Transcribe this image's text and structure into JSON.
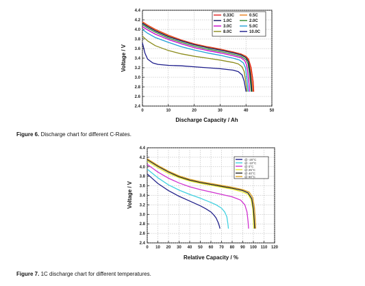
{
  "chart_data": [
    {
      "type": "line",
      "xlabel": "Discharge Capacity / Ah",
      "ylabel": "Voltage / V",
      "xlim": [
        0,
        50
      ],
      "ylim": [
        2.4,
        4.4
      ],
      "xticks": [
        "0",
        "10",
        "20",
        "30",
        "40",
        "50"
      ],
      "yticks": [
        "2.4",
        "2.6",
        "2.8",
        "3.0",
        "3.2",
        "3.4",
        "3.6",
        "3.8",
        "4.0",
        "4.2",
        "4.4"
      ],
      "legend_position": "top-right",
      "legend_columns": 2,
      "series": [
        {
          "name": "0.33C",
          "color": "#e01b1b",
          "x": [
            0,
            2,
            5,
            10,
            15,
            20,
            25,
            30,
            35,
            38,
            40,
            41,
            42,
            42.8,
            43
          ],
          "y": [
            4.16,
            4.09,
            4.0,
            3.88,
            3.78,
            3.7,
            3.64,
            3.59,
            3.53,
            3.49,
            3.44,
            3.38,
            3.2,
            2.9,
            2.7
          ]
        },
        {
          "name": "0.5C",
          "color": "#e87d1a",
          "x": [
            0,
            2,
            5,
            10,
            15,
            20,
            25,
            30,
            35,
            38,
            40,
            41,
            41.8,
            42.5,
            42.7
          ],
          "y": [
            4.15,
            4.08,
            3.99,
            3.87,
            3.77,
            3.69,
            3.63,
            3.58,
            3.52,
            3.48,
            3.43,
            3.35,
            3.15,
            2.85,
            2.7
          ]
        },
        {
          "name": "1.0C",
          "color": "#0a0a5c",
          "x": [
            0,
            2,
            5,
            10,
            15,
            20,
            25,
            30,
            35,
            38,
            40,
            41,
            41.6,
            42.1,
            42.3
          ],
          "y": [
            4.13,
            4.06,
            3.97,
            3.85,
            3.76,
            3.68,
            3.62,
            3.57,
            3.51,
            3.47,
            3.41,
            3.32,
            3.1,
            2.85,
            2.7
          ]
        },
        {
          "name": "2.0C",
          "color": "#2e8b2e",
          "x": [
            0,
            2,
            5,
            10,
            15,
            20,
            25,
            30,
            35,
            38,
            40,
            40.8,
            41.4,
            41.8,
            42
          ],
          "y": [
            4.1,
            4.03,
            3.94,
            3.82,
            3.73,
            3.65,
            3.59,
            3.54,
            3.48,
            3.44,
            3.37,
            3.28,
            3.05,
            2.85,
            2.7
          ]
        },
        {
          "name": "3.0C",
          "color": "#c800c8",
          "x": [
            0,
            2,
            5,
            10,
            15,
            20,
            25,
            30,
            35,
            38,
            39.5,
            40.3,
            40.8,
            41.2,
            41.4
          ],
          "y": [
            4.06,
            3.99,
            3.9,
            3.79,
            3.7,
            3.62,
            3.56,
            3.51,
            3.45,
            3.41,
            3.35,
            3.25,
            3.05,
            2.85,
            2.7
          ]
        },
        {
          "name": "5.0C",
          "color": "#1f9fd6",
          "x": [
            0,
            2,
            5,
            10,
            15,
            20,
            25,
            30,
            35,
            37.5,
            39,
            39.8,
            40.3,
            40.7,
            40.9
          ],
          "y": [
            4.0,
            3.92,
            3.83,
            3.73,
            3.64,
            3.57,
            3.51,
            3.46,
            3.4,
            3.36,
            3.3,
            3.2,
            3.0,
            2.8,
            2.7
          ]
        },
        {
          "name": "8.0C",
          "color": "#8b8b1a",
          "x": [
            0,
            2,
            5,
            10,
            15,
            20,
            25,
            30,
            35,
            37,
            38.5,
            39.3,
            39.8,
            40.2,
            40.4
          ],
          "y": [
            3.86,
            3.76,
            3.66,
            3.56,
            3.49,
            3.44,
            3.4,
            3.36,
            3.31,
            3.28,
            3.22,
            3.12,
            2.95,
            2.8,
            2.7
          ]
        },
        {
          "name": "10.0C",
          "color": "#1a1a8a",
          "x": [
            0,
            1,
            2,
            4,
            6,
            10,
            15,
            20,
            25,
            30,
            35,
            37,
            38.5,
            39.3,
            39.7,
            40
          ],
          "y": [
            3.72,
            3.5,
            3.38,
            3.3,
            3.27,
            3.25,
            3.24,
            3.22,
            3.2,
            3.18,
            3.15,
            3.12,
            3.05,
            2.92,
            2.8,
            2.7
          ]
        }
      ]
    },
    {
      "type": "line",
      "xlabel": "Relative Capacity / %",
      "ylabel": "Voltage / V",
      "xlim": [
        0,
        120
      ],
      "ylim": [
        2.4,
        4.4
      ],
      "xticks": [
        "0",
        "10",
        "20",
        "30",
        "40",
        "50",
        "60",
        "70",
        "80",
        "90",
        "100",
        "110",
        "120"
      ],
      "yticks": [
        "2.4",
        "2.6",
        "2.8",
        "3.0",
        "3.2",
        "3.4",
        "3.6",
        "3.8",
        "4.0",
        "4.2",
        "4.4"
      ],
      "legend_position": "top-right",
      "legend_columns": 1,
      "series": [
        {
          "name": "@ -20°C",
          "color": "#20208a",
          "x": [
            0,
            5,
            10,
            20,
            30,
            40,
            50,
            55,
            60,
            63,
            65,
            67,
            68,
            68.5
          ],
          "y": [
            3.85,
            3.75,
            3.65,
            3.5,
            3.38,
            3.28,
            3.18,
            3.12,
            3.05,
            2.98,
            2.92,
            2.82,
            2.75,
            2.7
          ]
        },
        {
          "name": "@ -10°C",
          "color": "#3fd0e0",
          "x": [
            0,
            5,
            10,
            20,
            30,
            40,
            50,
            60,
            65,
            70,
            73,
            75,
            76,
            76.5
          ],
          "y": [
            3.95,
            3.86,
            3.77,
            3.62,
            3.51,
            3.42,
            3.34,
            3.25,
            3.2,
            3.13,
            3.05,
            2.95,
            2.8,
            2.7
          ]
        },
        {
          "name": "@ 0°C",
          "color": "#d030d0",
          "x": [
            0,
            5,
            10,
            20,
            30,
            40,
            50,
            60,
            70,
            80,
            88,
            92,
            94,
            95,
            95.5
          ],
          "y": [
            4.05,
            3.97,
            3.89,
            3.76,
            3.66,
            3.58,
            3.52,
            3.47,
            3.42,
            3.37,
            3.3,
            3.2,
            3.05,
            2.85,
            2.7
          ]
        },
        {
          "name": "@ 25°C",
          "color": "#e8e830",
          "x": [
            0,
            5,
            10,
            20,
            30,
            40,
            50,
            60,
            70,
            80,
            90,
            95,
            98,
            99.5,
            100,
            100.3
          ],
          "y": [
            4.12,
            4.05,
            3.98,
            3.86,
            3.77,
            3.7,
            3.65,
            3.61,
            3.57,
            3.53,
            3.47,
            3.42,
            3.3,
            3.1,
            2.85,
            2.7
          ]
        },
        {
          "name": "@ 40°C",
          "color": "#222222",
          "x": [
            0,
            5,
            10,
            20,
            30,
            40,
            50,
            60,
            70,
            80,
            90,
            95,
            98.5,
            100,
            100.8,
            101.2
          ],
          "y": [
            4.15,
            4.08,
            4.01,
            3.89,
            3.79,
            3.72,
            3.67,
            3.63,
            3.59,
            3.55,
            3.5,
            3.45,
            3.33,
            3.12,
            2.88,
            2.7
          ]
        },
        {
          "name": "@ 60°C",
          "color": "#d8a020",
          "x": [
            0,
            5,
            10,
            20,
            30,
            40,
            50,
            60,
            70,
            80,
            90,
            96,
            99.5,
            101,
            101.8,
            102.2
          ],
          "y": [
            4.17,
            4.1,
            4.03,
            3.91,
            3.81,
            3.74,
            3.69,
            3.65,
            3.61,
            3.57,
            3.52,
            3.47,
            3.35,
            3.15,
            2.9,
            2.7
          ]
        }
      ]
    }
  ],
  "figures": {
    "fig6": {
      "number": "Figure 6.",
      "text": "Discharge chart for different C-Rates."
    },
    "fig7": {
      "number": "Figure 7.",
      "text": "1C discharge chart for different temperatures."
    }
  }
}
